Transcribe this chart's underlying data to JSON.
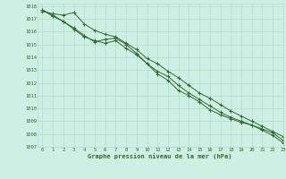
{
  "title": "Graphe pression niveau de la mer (hPa)",
  "background_color": "#cef0e4",
  "grid_color": "#b8d8cc",
  "line_color": "#2d6a2d",
  "xlim": [
    -0.5,
    23
  ],
  "ylim": [
    1007,
    1018.2
  ],
  "xticks": [
    0,
    1,
    2,
    3,
    4,
    5,
    6,
    7,
    8,
    9,
    10,
    11,
    12,
    13,
    14,
    15,
    16,
    17,
    18,
    19,
    20,
    21,
    22,
    23
  ],
  "yticks": [
    1007,
    1008,
    1009,
    1010,
    1011,
    1012,
    1013,
    1014,
    1015,
    1016,
    1017,
    1018
  ],
  "series": [
    [
      1017.6,
      1017.4,
      1017.3,
      1017.5,
      1016.6,
      1016.1,
      1015.8,
      1015.6,
      1015.1,
      1014.6,
      1013.9,
      1013.5,
      1012.9,
      1012.4,
      1011.8,
      1011.2,
      1010.8,
      1010.3,
      1009.8,
      1009.4,
      1009.0,
      1008.6,
      1008.2,
      1007.8
    ],
    [
      1017.7,
      1017.3,
      1016.8,
      1016.2,
      1015.6,
      1015.3,
      1015.1,
      1015.3,
      1014.7,
      1014.2,
      1013.5,
      1012.9,
      1012.5,
      1011.8,
      1011.2,
      1010.7,
      1010.2,
      1009.7,
      1009.3,
      1009.0,
      1008.7,
      1008.4,
      1008.1,
      1007.5
    ],
    [
      1017.7,
      1017.2,
      1016.8,
      1016.3,
      1015.7,
      1015.2,
      1015.4,
      1015.5,
      1015.0,
      1014.3,
      1013.5,
      1012.7,
      1012.2,
      1011.4,
      1011.0,
      1010.5,
      1009.9,
      1009.5,
      1009.2,
      1008.9,
      1008.7,
      1008.3,
      1007.9,
      1007.3
    ]
  ]
}
